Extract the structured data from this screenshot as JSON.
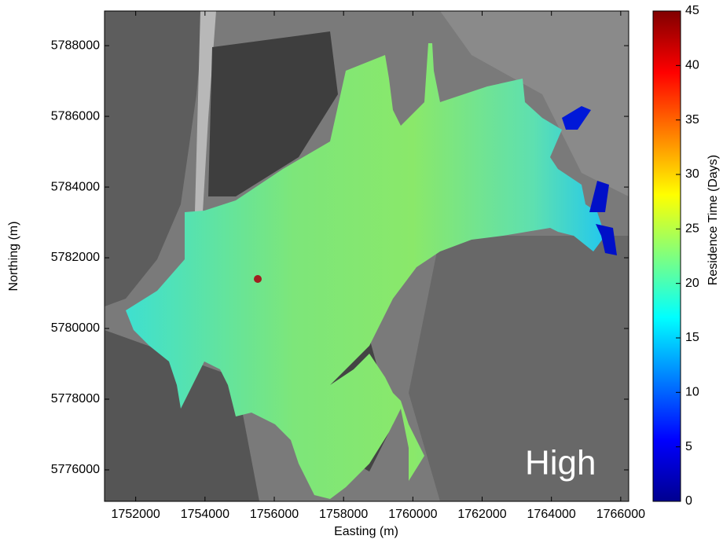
{
  "chart_data": {
    "type": "map",
    "xlabel": "Easting (m)",
    "ylabel": "Northing (m)",
    "xlim": [
      1751100,
      1766230
    ],
    "xticks": [
      1752000,
      1754000,
      1756000,
      1758000,
      1760000,
      1762000,
      1764000,
      1766000
    ],
    "ylim": [
      5775110,
      5788980
    ],
    "yticks": [
      5776000,
      5778000,
      5780000,
      5782000,
      5784000,
      5786000,
      5788000
    ],
    "colorbar": {
      "label": "Residence Time (Days)",
      "lim": [
        0,
        45
      ],
      "ticks": [
        0,
        5,
        10,
        15,
        20,
        25,
        30,
        35,
        40,
        45
      ]
    },
    "annotation": "High"
  }
}
